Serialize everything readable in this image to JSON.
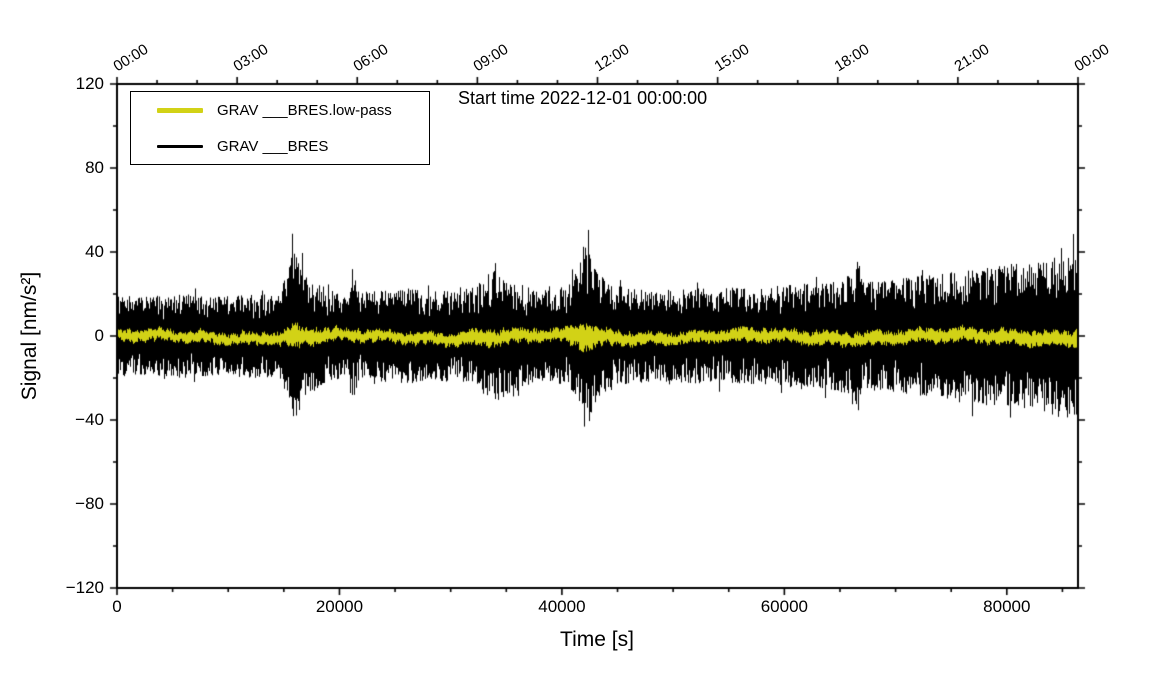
{
  "chart_data": {
    "type": "line",
    "title": "Start time 2022-12-01 00:00:00",
    "xlabel": "Time [s]",
    "ylabel": "Signal [nm/s²]",
    "xlim": [
      0,
      86400
    ],
    "ylim": [
      -120,
      120
    ],
    "grid": false,
    "legend_position": "top-left",
    "x_ticks": [
      {
        "v": 0,
        "label": "0"
      },
      {
        "v": 20000,
        "label": "20000"
      },
      {
        "v": 40000,
        "label": "40000"
      },
      {
        "v": 60000,
        "label": "60000"
      },
      {
        "v": 80000,
        "label": "80000"
      }
    ],
    "x_minor_step": 5000,
    "y_ticks": [
      {
        "v": 120,
        "label": "120"
      },
      {
        "v": 80,
        "label": "80"
      },
      {
        "v": 40,
        "label": "40"
      },
      {
        "v": 0,
        "label": "0"
      },
      {
        "v": -40,
        "label": "−40"
      },
      {
        "v": -80,
        "label": "−80"
      },
      {
        "v": -120,
        "label": "−120"
      }
    ],
    "y_minor_step": 20,
    "top_ticks": [
      {
        "v": 0,
        "label": "00:00"
      },
      {
        "v": 10800,
        "label": "03:00"
      },
      {
        "v": 21600,
        "label": "06:00"
      },
      {
        "v": 32400,
        "label": "09:00"
      },
      {
        "v": 43200,
        "label": "12:00"
      },
      {
        "v": 54000,
        "label": "15:00"
      },
      {
        "v": 64800,
        "label": "18:00"
      },
      {
        "v": 75600,
        "label": "21:00"
      },
      {
        "v": 86400,
        "label": "00:00"
      }
    ],
    "top_minor_step": 3600,
    "legend": [
      {
        "label": "GRAV ___BRES.low-pass",
        "color": "#d2d216"
      },
      {
        "label": "GRAV ___BRES",
        "color": "#000000"
      }
    ],
    "series": [
      {
        "name": "GRAV ___BRES",
        "color": "#000000",
        "style": "noise",
        "envelope": [
          [
            0,
            19
          ],
          [
            3000,
            19
          ],
          [
            6000,
            20
          ],
          [
            9000,
            19
          ],
          [
            12000,
            20
          ],
          [
            14500,
            20
          ],
          [
            15300,
            30
          ],
          [
            15800,
            43
          ],
          [
            16300,
            36
          ],
          [
            17000,
            30
          ],
          [
            18000,
            25
          ],
          [
            19500,
            21
          ],
          [
            20800,
            21
          ],
          [
            21200,
            30
          ],
          [
            21800,
            21
          ],
          [
            24000,
            22
          ],
          [
            26000,
            23
          ],
          [
            28000,
            21
          ],
          [
            30000,
            22
          ],
          [
            32000,
            23
          ],
          [
            33000,
            28
          ],
          [
            33800,
            32
          ],
          [
            34800,
            29
          ],
          [
            36000,
            26
          ],
          [
            37500,
            22
          ],
          [
            39000,
            22
          ],
          [
            40500,
            24
          ],
          [
            41500,
            30
          ],
          [
            41900,
            48
          ],
          [
            42400,
            42
          ],
          [
            43000,
            32
          ],
          [
            44000,
            26
          ],
          [
            45500,
            23
          ],
          [
            48000,
            22
          ],
          [
            50000,
            22
          ],
          [
            52000,
            23
          ],
          [
            54000,
            22
          ],
          [
            56000,
            24
          ],
          [
            58000,
            23
          ],
          [
            60000,
            24
          ],
          [
            62000,
            26
          ],
          [
            63500,
            25
          ],
          [
            65000,
            27
          ],
          [
            66300,
            30
          ],
          [
            66600,
            43
          ],
          [
            67000,
            27
          ],
          [
            68500,
            26
          ],
          [
            70000,
            27
          ],
          [
            72000,
            29
          ],
          [
            74000,
            30
          ],
          [
            76000,
            31
          ],
          [
            78000,
            33
          ],
          [
            80000,
            34
          ],
          [
            82000,
            36
          ],
          [
            83500,
            36
          ],
          [
            84800,
            40
          ],
          [
            85800,
            38
          ],
          [
            86200,
            44
          ],
          [
            86400,
            48
          ]
        ]
      },
      {
        "name": "GRAV ___BRES.low-pass",
        "color": "#d2d216",
        "style": "noise-band",
        "envelope": [
          [
            0,
            3
          ],
          [
            10000,
            3
          ],
          [
            15000,
            3.5
          ],
          [
            15800,
            6.5
          ],
          [
            16500,
            5.5
          ],
          [
            18000,
            4
          ],
          [
            20000,
            3.2
          ],
          [
            25000,
            3
          ],
          [
            30000,
            3.2
          ],
          [
            33500,
            4.5
          ],
          [
            35000,
            3.8
          ],
          [
            40000,
            3.2
          ],
          [
            41800,
            7.5
          ],
          [
            42500,
            6
          ],
          [
            44000,
            4
          ],
          [
            48000,
            3
          ],
          [
            55000,
            3.2
          ],
          [
            57000,
            4
          ],
          [
            60000,
            3.3
          ],
          [
            65000,
            3.5
          ],
          [
            70000,
            3.5
          ],
          [
            75000,
            3.5
          ],
          [
            80000,
            3.8
          ],
          [
            84000,
            4
          ],
          [
            86400,
            4.5
          ]
        ]
      }
    ]
  }
}
